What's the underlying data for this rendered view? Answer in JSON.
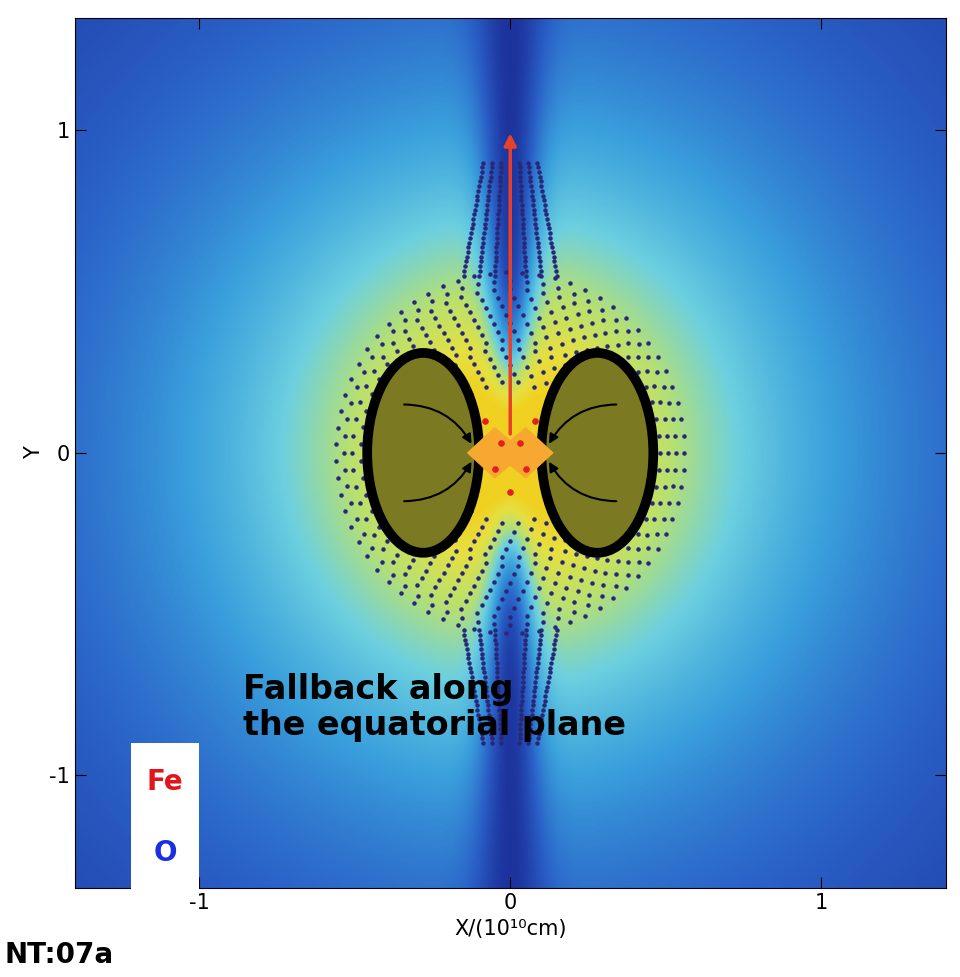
{
  "chart_data": {
    "type": "image",
    "xlabel": "X/(10¹⁰cm)",
    "ylabel": "Y",
    "xlim": [
      -1.4,
      1.4
    ],
    "ylim": [
      -1.35,
      1.35
    ],
    "xticks": [
      -1,
      0,
      1
    ],
    "yticks": [
      -1,
      0,
      1
    ],
    "annotations": [
      "Fallback along\nthe equatorial plane",
      "Fe",
      "O"
    ],
    "caption": "NT:07a"
  }
}
